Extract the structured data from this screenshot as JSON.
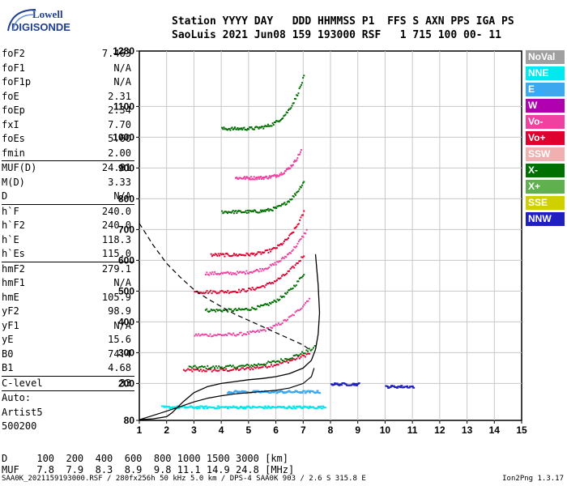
{
  "logo": {
    "line1": "Lowell",
    "line2": "DIGISONDE"
  },
  "header": {
    "line1": "Station YYYY DAY   DDD HHMMSS P1  FFS S AXN PPS IGA PS",
    "line2": "SaoLuis 2021 Jun08 159 193000 RSF   1 715 100 00- 11"
  },
  "params": [
    {
      "group": [
        {
          "name": "foF2",
          "value": "7.463"
        },
        {
          "name": "foF1",
          "value": "N/A"
        },
        {
          "name": "foF1p",
          "value": "N/A"
        },
        {
          "name": "foE",
          "value": "2.31"
        },
        {
          "name": "foEp",
          "value": "2.34"
        },
        {
          "name": "fxI",
          "value": "7.70"
        },
        {
          "name": "foEs",
          "value": "5.60"
        },
        {
          "name": "fmin",
          "value": "2.00"
        }
      ]
    },
    {
      "group": [
        {
          "name": "MUF(D)",
          "value": "24.81"
        },
        {
          "name": "M(D)",
          "value": "3.33"
        },
        {
          "name": "D",
          "value": "N/A"
        }
      ]
    },
    {
      "group": [
        {
          "name": "h`F",
          "value": "240.0"
        },
        {
          "name": "h`F2",
          "value": "240.0"
        },
        {
          "name": "h`E",
          "value": "118.3"
        },
        {
          "name": "h`Es",
          "value": "115.0"
        }
      ]
    },
    {
      "group": [
        {
          "name": "hmF2",
          "value": "279.1"
        },
        {
          "name": "hmF1",
          "value": "N/A"
        },
        {
          "name": "hmE",
          "value": "105.9"
        },
        {
          "name": "yF2",
          "value": "98.9"
        },
        {
          "name": "yF1",
          "value": "N/A"
        },
        {
          "name": "yE",
          "value": "15.6"
        },
        {
          "name": "B0",
          "value": "74.4"
        },
        {
          "name": "B1",
          "value": "4.68"
        }
      ]
    },
    {
      "group": [
        {
          "name": "C-level",
          "value": "33"
        }
      ]
    },
    {
      "group": [
        {
          "name": "Auto:",
          "value": ""
        },
        {
          "name": "Artist5",
          "value": ""
        },
        {
          "name": "500200",
          "value": ""
        }
      ]
    }
  ],
  "legend": [
    {
      "label": "NoVal",
      "color": "#a0a0a0"
    },
    {
      "label": "NNE",
      "color": "#00e8f0"
    },
    {
      "label": "E",
      "color": "#3ca8f0"
    },
    {
      "label": "W",
      "color": "#b000b0"
    },
    {
      "label": "Vo-",
      "color": "#f040a0"
    },
    {
      "label": "Vo+",
      "color": "#e00030"
    },
    {
      "label": "SSW",
      "color": "#f0b0b0"
    },
    {
      "label": "X-",
      "color": "#007000"
    },
    {
      "label": "X+",
      "color": "#60b050"
    },
    {
      "label": "SSE",
      "color": "#d0d000"
    },
    {
      "label": "NNW",
      "color": "#2020c0"
    }
  ],
  "muf_table": {
    "line1": "D     100  200  400  600  800 1000 1500 3000 [km]",
    "line2": "MUF   7.8  7.9  8.3  8.9  9.8 11.1 14.9 24.8 [MHz]"
  },
  "footer": {
    "text": "SAA0K_2021159193000.RSF / 280fx256h 50 kHz 5.0 km / DPS-4 SAA0K 903 / 2.6 S 315.8 E",
    "version": "Ion2Png 1.3.17"
  },
  "chart_data": {
    "type": "scatter",
    "xlim": [
      1,
      15
    ],
    "ylim": [
      80,
      1280
    ],
    "x_ticks": [
      1,
      2,
      3,
      4,
      5,
      6,
      7,
      8,
      9,
      10,
      11,
      12,
      13,
      14,
      15
    ],
    "y_ticks": [
      80,
      200,
      300,
      400,
      500,
      600,
      700,
      800,
      900,
      1000,
      1100,
      1280
    ],
    "grid": true,
    "legend_position": "right",
    "profile_curve": {
      "x": [
        1.0,
        1.5,
        2.0,
        2.2,
        2.6,
        3.0,
        3.5,
        4.0,
        4.5,
        5.0,
        5.5,
        6.0,
        6.5,
        7.0,
        7.3,
        7.45,
        7.55,
        7.6,
        7.55,
        7.45
      ],
      "y": [
        82,
        85,
        92,
        105,
        140,
        170,
        190,
        200,
        206,
        212,
        216,
        222,
        232,
        250,
        275,
        310,
        360,
        430,
        520,
        620
      ]
    },
    "underlying_curve": {
      "x": [
        1.0,
        1.5,
        2.0,
        2.5,
        3.0,
        3.5,
        4.0,
        4.5,
        5.0,
        5.5,
        6.0,
        6.5,
        7.0,
        7.3,
        7.4
      ],
      "y": [
        82,
        96,
        110,
        125,
        140,
        152,
        160,
        166,
        170,
        174,
        178,
        185,
        200,
        222,
        250
      ]
    },
    "dashed_curve": {
      "x": [
        1.0,
        1.5,
        2.0,
        2.5,
        3.0,
        3.5,
        4.0,
        4.5,
        5.0,
        5.5,
        6.0,
        6.5,
        7.0,
        7.3
      ],
      "y": [
        720,
        650,
        590,
        545,
        505,
        475,
        450,
        425,
        405,
        385,
        365,
        345,
        325,
        305
      ]
    },
    "traces": [
      {
        "series": "Vo+",
        "x0": 2.6,
        "x1": 7.2,
        "h0": 245,
        "h1": 300,
        "rise": 0.6
      },
      {
        "series": "X-",
        "x0": 2.8,
        "x1": 7.4,
        "h0": 255,
        "h1": 320,
        "rise": 0.6
      },
      {
        "series": "Vo-",
        "x0": 3.0,
        "x1": 7.2,
        "h0": 360,
        "h1": 480,
        "rise": 0.5
      },
      {
        "series": "X-",
        "x0": 3.4,
        "x1": 7.0,
        "h0": 440,
        "h1": 560,
        "rise": 0.5
      },
      {
        "series": "Vo+",
        "x0": 3.0,
        "x1": 7.0,
        "h0": 500,
        "h1": 620,
        "rise": 0.5
      },
      {
        "series": "Vo-",
        "x0": 3.4,
        "x1": 7.1,
        "h0": 560,
        "h1": 700,
        "rise": 0.5
      },
      {
        "series": "Vo+",
        "x0": 3.6,
        "x1": 7.0,
        "h0": 620,
        "h1": 760,
        "rise": 0.4
      },
      {
        "series": "X-",
        "x0": 4.0,
        "x1": 7.0,
        "h0": 760,
        "h1": 860,
        "rise": 0.4
      },
      {
        "series": "Vo-",
        "x0": 4.5,
        "x1": 6.9,
        "h0": 870,
        "h1": 960,
        "rise": 0.4
      },
      {
        "series": "X-",
        "x0": 4.0,
        "x1": 7.0,
        "h0": 1030,
        "h1": 1200,
        "rise": 0.4
      }
    ],
    "es_layer": [
      {
        "series": "NNE",
        "x0": 1.8,
        "x1": 7.8,
        "h": 125
      },
      {
        "series": "E",
        "x0": 4.2,
        "x1": 7.6,
        "h": 175
      },
      {
        "series": "NNW",
        "x0": 8.0,
        "x1": 9.0,
        "h": 200
      },
      {
        "series": "NNW",
        "x0": 10.0,
        "x1": 11.0,
        "h": 192
      }
    ]
  }
}
